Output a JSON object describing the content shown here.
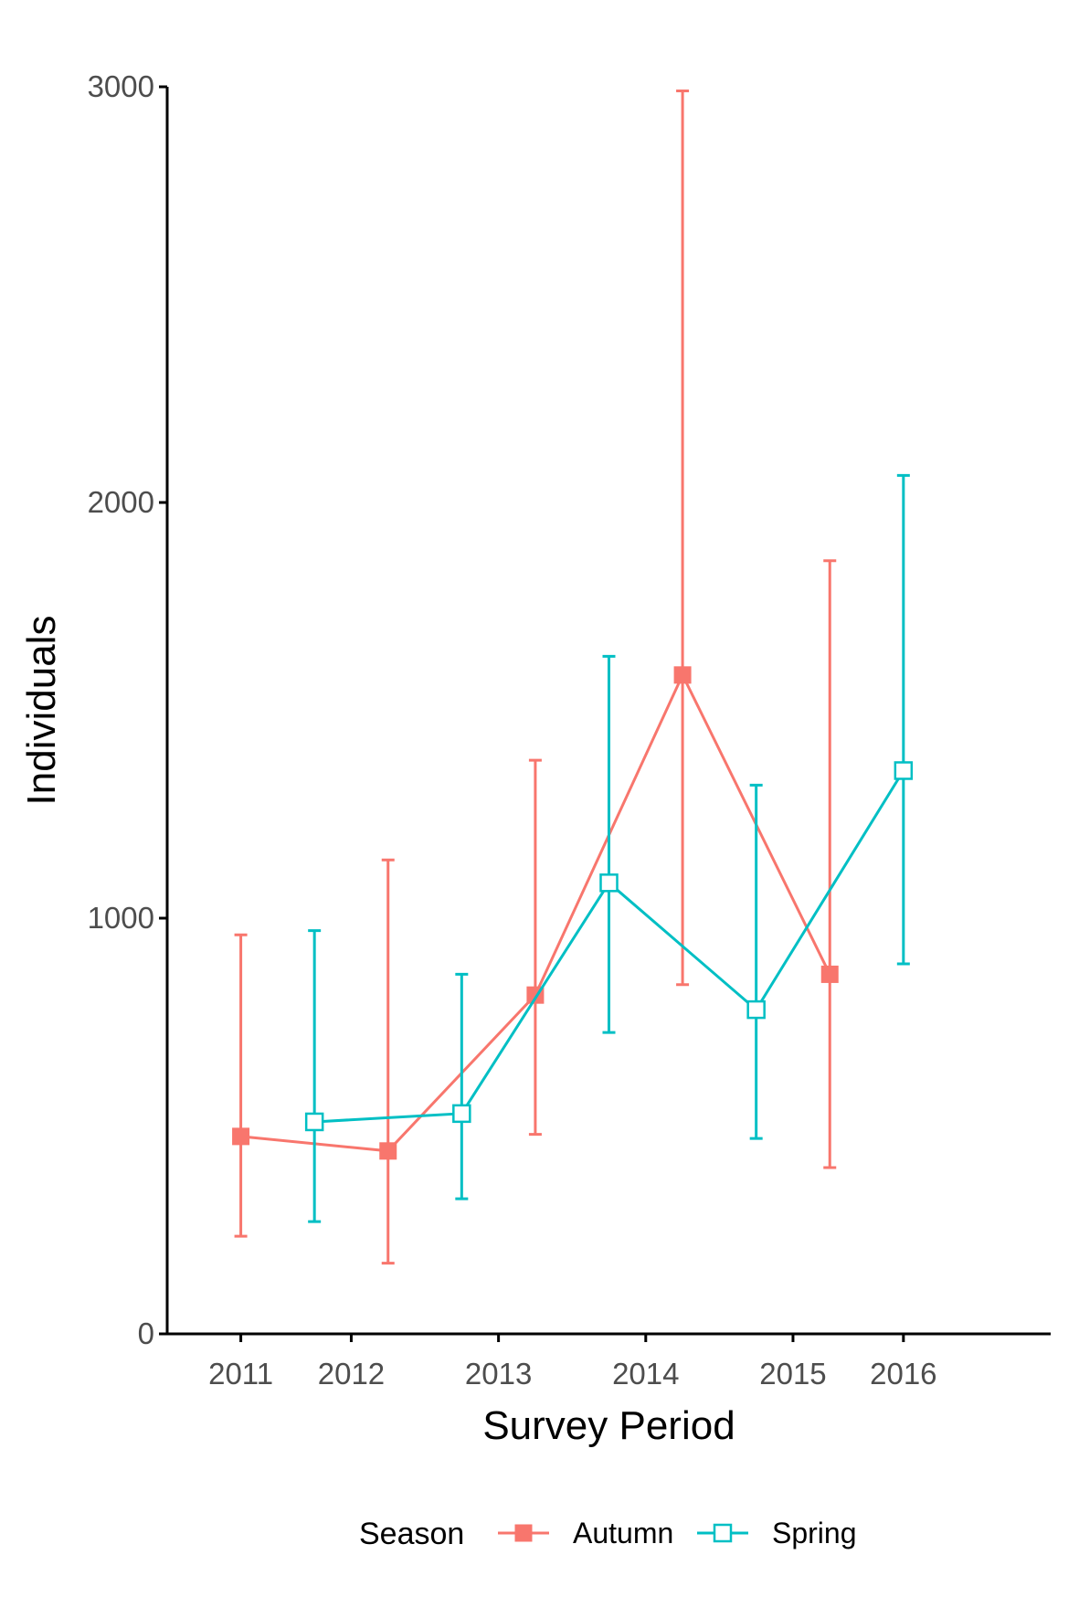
{
  "chart_data": {
    "type": "line",
    "title": "",
    "xlabel": "Survey Period",
    "ylabel": "Individuals",
    "ylim": [
      0,
      3000
    ],
    "yticks": [
      0,
      1000,
      2000,
      3000
    ],
    "ytick_labels": [
      "0",
      "1000",
      "2000",
      "3000"
    ],
    "xlim": [
      2010.5,
      2016.5
    ],
    "xticks": [
      2011,
      2011.75,
      2012.75,
      2013.75,
      2014.75,
      2015.5
    ],
    "xtick_labels": [
      "2011",
      "2012",
      "2013",
      "2014",
      "2015",
      "2016"
    ],
    "grid": false,
    "legend": {
      "title": "Season",
      "position": "bottom"
    },
    "series": [
      {
        "name": "Autumn",
        "color": "#F8766D",
        "marker": "filled-square",
        "x": [
          2011.0,
          2012.0,
          2013.0,
          2014.0,
          2015.0
        ],
        "y": [
          475,
          440,
          815,
          1585,
          865
        ],
        "ymin": [
          235,
          170,
          480,
          840,
          400
        ],
        "ymax": [
          960,
          1140,
          1380,
          2990,
          1860
        ]
      },
      {
        "name": "Spring",
        "color": "#00BFC4",
        "marker": "open-square",
        "x": [
          2011.5,
          2012.5,
          2013.5,
          2014.5,
          2015.5
        ],
        "y": [
          510,
          530,
          1085,
          780,
          1355
        ],
        "ymin": [
          270,
          325,
          725,
          470,
          890
        ],
        "ymax": [
          970,
          865,
          1630,
          1320,
          2065
        ]
      }
    ]
  }
}
